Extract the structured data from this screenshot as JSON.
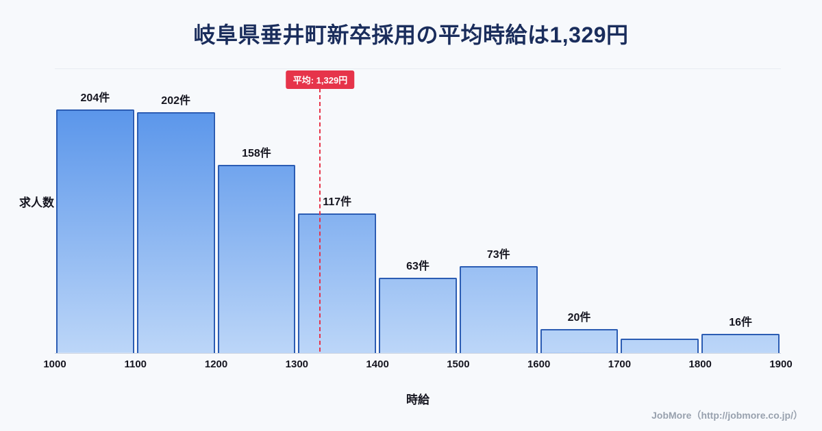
{
  "page": {
    "footer": "JobMore（http://jobmore.co.jp/）"
  },
  "chart_data": {
    "type": "bar",
    "subtype": "histogram",
    "title": "岐阜県垂井町新卒採用の平均時給は1,329円",
    "xlabel": "時給",
    "ylabel": "求人数",
    "bin_edges": [
      1000,
      1100,
      1200,
      1300,
      1400,
      1500,
      1600,
      1700,
      1800,
      1900
    ],
    "values": [
      204,
      202,
      158,
      117,
      63,
      73,
      20,
      12,
      16
    ],
    "bar_labels": [
      "204件",
      "202件",
      "158件",
      "117件",
      "63件",
      "73件",
      "20件",
      "",
      "16件"
    ],
    "xlim": [
      1000,
      1900
    ],
    "ylim": [
      0,
      238
    ],
    "grid": false,
    "legend": "none",
    "mean_value": 1329,
    "mean_label": "平均: 1,329円",
    "colors": {
      "bar_gradient_top": "#4a8be8",
      "bar_gradient_bottom": "#bcd6f8",
      "bar_border": "#2b5cb3",
      "mean_line": "#e6344a",
      "title_text": "#1a2d5c",
      "label_text": "#15151f",
      "footer_text": "#98a1ae",
      "background": "#f7f9fc"
    }
  }
}
